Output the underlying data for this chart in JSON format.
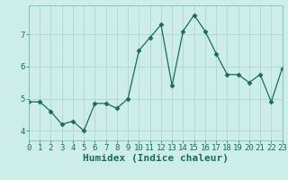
{
  "x": [
    0,
    1,
    2,
    3,
    4,
    5,
    6,
    7,
    8,
    9,
    10,
    11,
    12,
    13,
    14,
    15,
    16,
    17,
    18,
    19,
    20,
    21,
    22,
    23
  ],
  "y": [
    4.9,
    4.9,
    4.6,
    4.2,
    4.3,
    4.0,
    4.85,
    4.85,
    4.7,
    5.0,
    6.5,
    6.9,
    7.3,
    5.4,
    7.1,
    7.6,
    7.1,
    6.4,
    5.75,
    5.75,
    5.5,
    5.75,
    4.9,
    5.95
  ],
  "xlabel": "Humidex (Indice chaleur)",
  "xlim": [
    0,
    23
  ],
  "ylim": [
    3.7,
    7.9
  ],
  "yticks": [
    4,
    5,
    6,
    7
  ],
  "xticks": [
    0,
    1,
    2,
    3,
    4,
    5,
    6,
    7,
    8,
    9,
    10,
    11,
    12,
    13,
    14,
    15,
    16,
    17,
    18,
    19,
    20,
    21,
    22,
    23
  ],
  "line_color": "#1a6b5a",
  "marker": "D",
  "marker_size": 2.5,
  "bg_color": "#cdeee8",
  "grid_color": "#aed8d0",
  "fig_bg": "#cdeee8",
  "xlabel_fontsize": 8,
  "tick_fontsize": 6.5
}
